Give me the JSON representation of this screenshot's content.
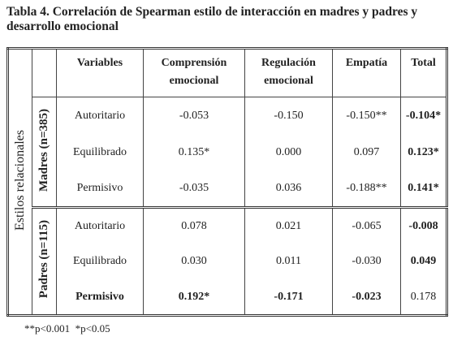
{
  "title": "Tabla 4. Correlación de Spearman estilo de interacción en madres y padres y desarrollo emocional",
  "table": {
    "header": [
      "Variables",
      "Comprensión emocional",
      "Regulación emocional",
      "Empatía",
      "Total"
    ],
    "side_label": "Estilos relacionales",
    "groups": [
      {
        "label": "Madres (n=385)",
        "rows": [
          [
            "Autoritario",
            "-0.053",
            "-0.150",
            "-0.150**",
            "-0.104*"
          ],
          [
            "Equilibrado",
            "0.135*",
            "0.000",
            "0.097",
            "0.123*"
          ],
          [
            "Permisivo",
            "-0.035",
            "0.036",
            "-0.188**",
            "0.141*"
          ]
        ]
      },
      {
        "label": "Padres (n=115)",
        "rows": [
          [
            "Autoritario",
            "0.078",
            "0.021",
            "-0.065",
            "-0.008"
          ],
          [
            "Equilibrado",
            "0.030",
            "0.011",
            "-0.030",
            "0.049"
          ],
          [
            "Permisivo",
            "0.192*",
            "-0.171",
            "-0.023",
            "0.178"
          ]
        ]
      }
    ]
  },
  "footnote": "**p<0.001  *p<0.05"
}
